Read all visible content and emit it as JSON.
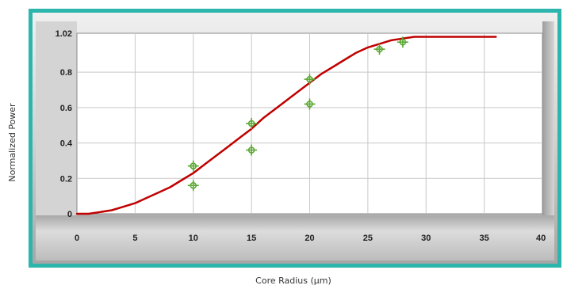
{
  "chart_data": {
    "type": "line",
    "title": "",
    "xlabel": "Core Radius (µm)",
    "ylabel": "Normalized Power",
    "xlim": [
      0,
      40
    ],
    "ylim": [
      0,
      1.02
    ],
    "x_ticks": [
      "0",
      "5",
      "10",
      "15",
      "20",
      "25",
      "30",
      "35",
      "40"
    ],
    "y_ticks": [
      "0",
      "0.2",
      "0.4",
      "0.6",
      "0.8",
      "1.02"
    ],
    "grid": true,
    "series": [
      {
        "kind": "line",
        "color": "#c00000",
        "x": [
          0,
          1,
          2,
          3,
          4,
          5,
          6,
          7,
          8,
          9,
          10,
          11,
          12,
          13,
          14,
          15,
          16,
          17,
          18,
          19,
          20,
          21,
          22,
          23,
          24,
          25,
          26,
          27,
          28,
          29,
          30,
          31,
          32,
          33,
          34,
          35,
          36
        ],
        "y": [
          0.0,
          0.0,
          0.01,
          0.02,
          0.04,
          0.06,
          0.09,
          0.12,
          0.15,
          0.19,
          0.23,
          0.28,
          0.33,
          0.38,
          0.43,
          0.48,
          0.54,
          0.59,
          0.64,
          0.69,
          0.74,
          0.79,
          0.83,
          0.87,
          0.91,
          0.94,
          0.96,
          0.98,
          0.99,
          1.0,
          1.0,
          1.0,
          1.0,
          1.0,
          1.0,
          1.0,
          1.0
        ]
      },
      {
        "kind": "scatter",
        "color": "#5aa832",
        "x": [
          10,
          10,
          15,
          15,
          20,
          20,
          26,
          28
        ],
        "y": [
          0.27,
          0.16,
          0.51,
          0.36,
          0.76,
          0.62,
          0.93,
          0.97
        ]
      }
    ],
    "colors": {
      "frame_border": "#2bb5ad",
      "panel": "#c8c8c8",
      "plot_background": "#ffffff",
      "grid": "#c8c8c8"
    }
  }
}
